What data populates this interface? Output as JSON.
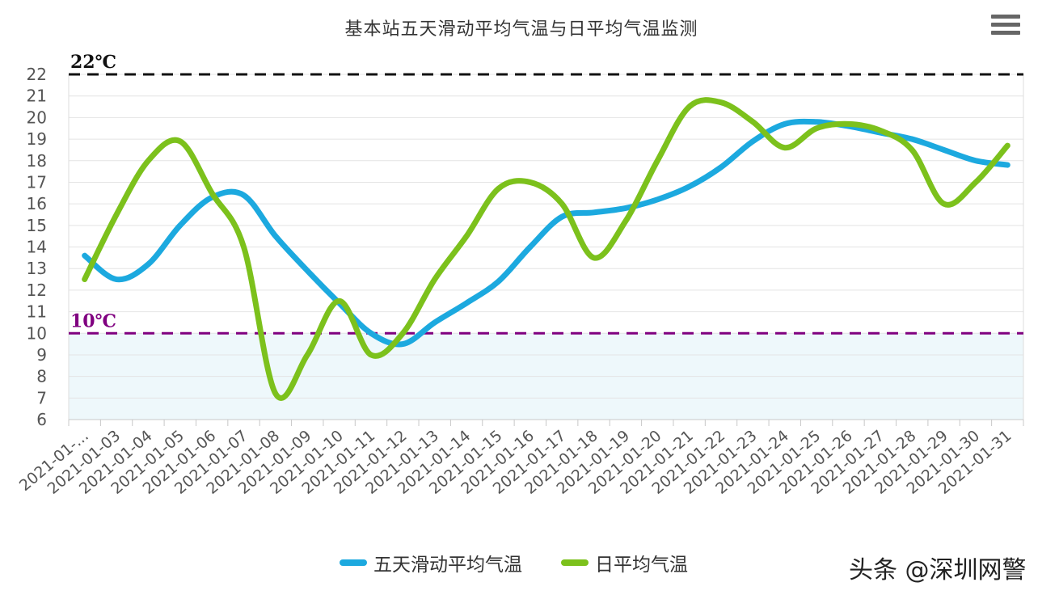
{
  "title": "基本站五天滑动平均气温与日平均气温监测",
  "menu_icon": "hamburger-menu-icon",
  "watermark": "头条 @深圳网警",
  "chart_data": {
    "type": "line",
    "title": "基本站五天滑动平均气温与日平均气温监测",
    "xlabel": "",
    "ylabel": "",
    "ylim": [
      6,
      22
    ],
    "y_ticks": [
      6,
      7,
      8,
      9,
      10,
      11,
      12,
      13,
      14,
      15,
      16,
      17,
      18,
      19,
      20,
      21,
      22
    ],
    "grid": true,
    "legend_position": "bottom-center",
    "categories": [
      "2021-01-...",
      "2021-01-03",
      "2021-01-04",
      "2021-01-05",
      "2021-01-06",
      "2021-01-07",
      "2021-01-08",
      "2021-01-09",
      "2021-01-10",
      "2021-01-11",
      "2021-01-12",
      "2021-01-13",
      "2021-01-14",
      "2021-01-15",
      "2021-01-16",
      "2021-01-17",
      "2021-01-18",
      "2021-01-19",
      "2021-01-20",
      "2021-01-21",
      "2021-01-22",
      "2021-01-23",
      "2021-01-24",
      "2021-01-25",
      "2021-01-26",
      "2021-01-27",
      "2021-01-28",
      "2021-01-29",
      "2021-01-30",
      "2021-01-31"
    ],
    "series": [
      {
        "name": "五天滑动平均气温",
        "color": "#1ca9df",
        "values": [
          13.6,
          12.5,
          13.2,
          15.0,
          16.3,
          16.4,
          14.5,
          12.9,
          11.4,
          10.0,
          9.5,
          10.5,
          11.4,
          12.4,
          14.0,
          15.4,
          15.6,
          15.8,
          16.2,
          16.8,
          17.7,
          18.9,
          19.7,
          19.8,
          19.6,
          19.3,
          19.0,
          18.5,
          18.0,
          17.8
        ]
      },
      {
        "name": "日平均气温",
        "color": "#7cc11c",
        "values": [
          12.5,
          15.5,
          18.0,
          18.9,
          16.5,
          14.0,
          7.2,
          9.0,
          11.5,
          9.0,
          10.0,
          12.5,
          14.5,
          16.7,
          17.0,
          16.0,
          13.5,
          15.2,
          18.0,
          20.5,
          20.7,
          19.8,
          18.6,
          19.5,
          19.7,
          19.4,
          18.5,
          16.0,
          17.0,
          18.7
        ]
      }
    ],
    "reference_lines": [
      {
        "value": 22,
        "label": "22℃",
        "color": "#111111"
      },
      {
        "value": 10,
        "label": "10℃",
        "color": "#800080"
      }
    ],
    "shaded_band": {
      "from": 6,
      "to": 10,
      "color": "#eef8fb"
    }
  }
}
